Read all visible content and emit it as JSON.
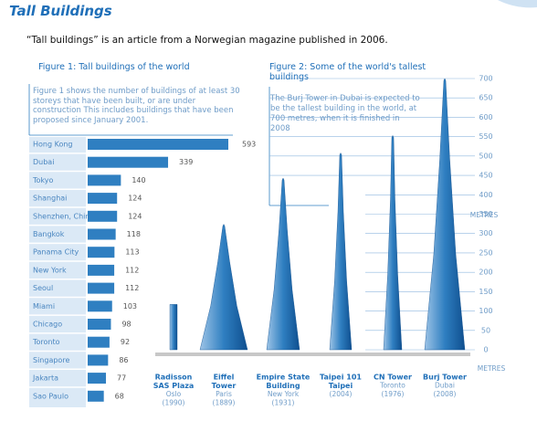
{
  "header": {
    "title": "Tall Buildings",
    "intro": "“Tall buildings” is an article from a Norwegian magazine published in 2006."
  },
  "figure1": {
    "chart_data": {
      "type": "hbar",
      "title": "Figure 1: Tall buildings of the world",
      "description": "Figure 1 shows the number of buildings of at least 30 storeys that have been built, or  are under construction This includes buildings that have been proposed since January 2001.",
      "categories": [
        "Hong Kong",
        "Dubai",
        "Tokyo",
        "Shanghai",
        "Shenzhen, China",
        "Bangkok",
        "Panama  City",
        "New York",
        "Seoul",
        "Miami",
        "Chicago",
        "Toronto",
        "Singapore",
        "Jakarta",
        "Sao Paulo"
      ],
      "values": [
        593,
        339,
        140,
        124,
        124,
        118,
        113,
        112,
        112,
        103,
        98,
        92,
        86,
        77,
        68
      ],
      "color": "#2f7fc1"
    }
  },
  "figure2": {
    "chart_data": {
      "type": "building",
      "title": "Figure 2: Some of the world's tallest buildings",
      "description": "The Burj Tower in Dubai is expected to be the tallest building in the world, at 700 metres, when it is finished in 2008",
      "y_label": "METRES",
      "ylim": [
        0,
        700
      ],
      "yticks": [
        0,
        50,
        100,
        150,
        200,
        250,
        300,
        350,
        400,
        450,
        500,
        550,
        600,
        650,
        700
      ],
      "color": "#2f7fc1",
      "buildings": [
        {
          "name": [
            "Radisson",
            "SAS Plaza"
          ],
          "city": "Oslo",
          "year": "(1990)",
          "height": 117
        },
        {
          "name": [
            "Eiffel",
            "Tower"
          ],
          "city": "Paris",
          "year": "(1889)",
          "height": 324
        },
        {
          "name": [
            "Empire State",
            "Building"
          ],
          "city": "New York",
          "year": "(1931)",
          "height": 443
        },
        {
          "name": [
            "Taipei 101",
            "Taipei"
          ],
          "city": null,
          "year": "(2004)",
          "height": 508
        },
        {
          "name": [
            "CN Tower"
          ],
          "city": "Toronto",
          "year": "(1976)",
          "height": 553
        },
        {
          "name": [
            "Burj Tower"
          ],
          "city": "Dubai",
          "year": "(2008)",
          "height": 700
        }
      ]
    }
  }
}
